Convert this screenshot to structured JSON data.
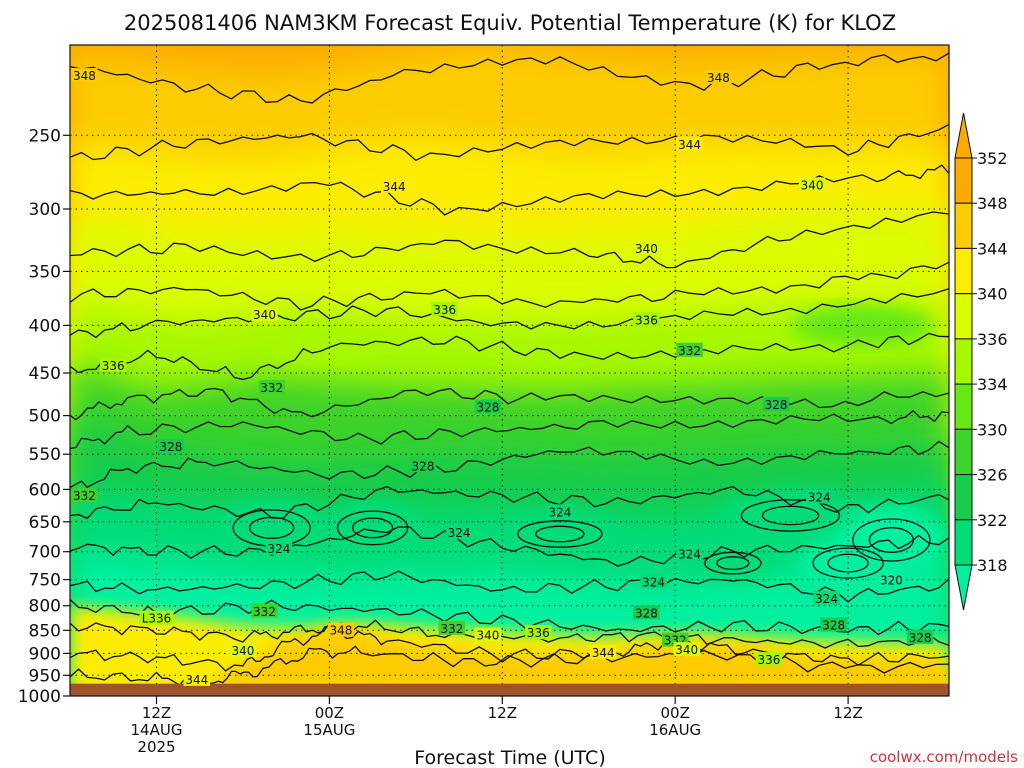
{
  "chart_data": {
    "type": "heatmap",
    "title": "2025081406 NAM3KM Forecast Equiv. Potential Temperature (K) for KLOZ",
    "xlabel": "Forecast Time (UTC)",
    "ylabel": "",
    "y_scale": "log pressure (hPa), inverted",
    "ylim": [
      1000,
      200
    ],
    "y_ticks": [
      250,
      300,
      350,
      400,
      450,
      500,
      550,
      600,
      650,
      700,
      750,
      800,
      850,
      900,
      950,
      1000
    ],
    "y_tick_labels": [
      "250",
      "300",
      "350",
      "400",
      "450",
      "500",
      "550",
      "600",
      "650",
      "700",
      "750",
      "800",
      "850",
      "900",
      "950",
      "1000"
    ],
    "x_ticks": [
      {
        "hour": 12,
        "label": "12Z",
        "date": "14AUG",
        "year": "2025"
      },
      {
        "hour": 24,
        "label": "00Z",
        "date": "15AUG",
        "year": ""
      },
      {
        "hour": 36,
        "label": "12Z",
        "date": "",
        "year": ""
      },
      {
        "hour": 48,
        "label": "00Z",
        "date": "16AUG",
        "year": ""
      },
      {
        "hour": 60,
        "label": "12Z",
        "date": "",
        "year": ""
      }
    ],
    "xlim_hours": [
      6,
      67
    ],
    "grid": "dotted",
    "colorbar": {
      "position": "right",
      "levels": [
        318,
        322,
        326,
        330,
        334,
        336,
        340,
        344,
        348,
        352
      ],
      "level_labels": [
        "318",
        "322",
        "326",
        "330",
        "334",
        "336",
        "340",
        "344",
        "348",
        "352"
      ],
      "colors": [
        "#00f0a0",
        "#00dc78",
        "#18cc4c",
        "#3ed22c",
        "#66e812",
        "#a6f800",
        "#dcfc00",
        "#fcec00",
        "#fccc00",
        "#fcaa00"
      ]
    },
    "ground_color": "#a0522d",
    "ground_pressure": 970,
    "contour_labels": [
      {
        "hour": 7.0,
        "p": 216,
        "label": "348"
      },
      {
        "hour": 51.0,
        "p": 217,
        "label": "348"
      },
      {
        "hour": 49.0,
        "p": 256,
        "label": "344"
      },
      {
        "hour": 28.5,
        "p": 284,
        "label": "344"
      },
      {
        "hour": 57.5,
        "p": 283,
        "label": "340"
      },
      {
        "hour": 46.0,
        "p": 331,
        "label": "340"
      },
      {
        "hour": 19.5,
        "p": 390,
        "label": "340"
      },
      {
        "hour": 32.0,
        "p": 385,
        "label": "336"
      },
      {
        "hour": 46.0,
        "p": 395,
        "label": "336"
      },
      {
        "hour": 9.0,
        "p": 442,
        "label": "336"
      },
      {
        "hour": 49.0,
        "p": 426,
        "label": "332"
      },
      {
        "hour": 20.0,
        "p": 467,
        "label": "332"
      },
      {
        "hour": 35.0,
        "p": 490,
        "label": "328"
      },
      {
        "hour": 55.0,
        "p": 487,
        "label": "328"
      },
      {
        "hour": 13.0,
        "p": 540,
        "label": "328"
      },
      {
        "hour": 30.5,
        "p": 567,
        "label": "328"
      },
      {
        "hour": 7.0,
        "p": 610,
        "label": "332"
      },
      {
        "hour": 58.0,
        "p": 612,
        "label": "324"
      },
      {
        "hour": 40.0,
        "p": 635,
        "label": "324"
      },
      {
        "hour": 33.0,
        "p": 668,
        "label": "324"
      },
      {
        "hour": 49.0,
        "p": 705,
        "label": "324"
      },
      {
        "hour": 20.5,
        "p": 695,
        "label": "324"
      },
      {
        "hour": 46.5,
        "p": 755,
        "label": "324"
      },
      {
        "hour": 63.0,
        "p": 752,
        "label": "320"
      },
      {
        "hour": 58.5,
        "p": 787,
        "label": "324"
      },
      {
        "hour": 19.5,
        "p": 812,
        "label": "332"
      },
      {
        "hour": 46.0,
        "p": 815,
        "label": "328"
      },
      {
        "hour": 12.0,
        "p": 826,
        "label": "L336"
      },
      {
        "hour": 59.0,
        "p": 840,
        "label": "328"
      },
      {
        "hour": 24.8,
        "p": 851,
        "label": "348"
      },
      {
        "hour": 32.5,
        "p": 847,
        "label": "332"
      },
      {
        "hour": 38.5,
        "p": 856,
        "label": "336"
      },
      {
        "hour": 35.0,
        "p": 861,
        "label": "340"
      },
      {
        "hour": 48.0,
        "p": 872,
        "label": "332"
      },
      {
        "hour": 48.8,
        "p": 893,
        "label": "340"
      },
      {
        "hour": 65.0,
        "p": 866,
        "label": "328"
      },
      {
        "hour": 18.0,
        "p": 895,
        "label": "340"
      },
      {
        "hour": 43.0,
        "p": 899,
        "label": "344"
      },
      {
        "hour": 54.5,
        "p": 915,
        "label": "336"
      },
      {
        "hour": 14.8,
        "p": 961,
        "label": "344"
      }
    ]
  },
  "watermark": "coolwx.com/models"
}
